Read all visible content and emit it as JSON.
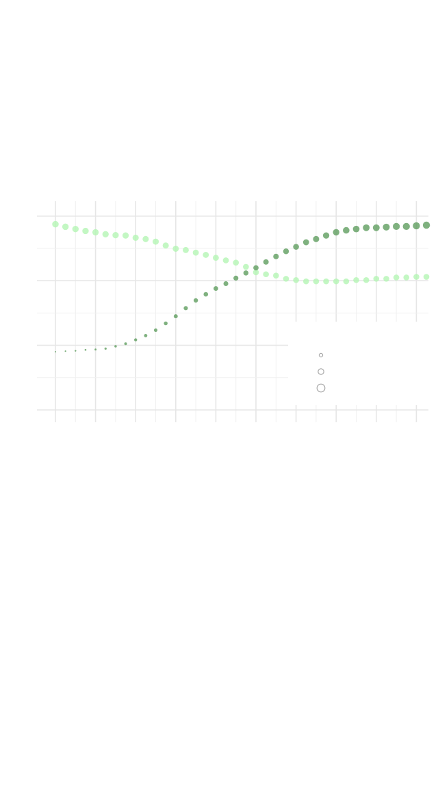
{
  "chart_data": {
    "type": "scatter",
    "title": "",
    "xlabel": "",
    "ylabel": "",
    "xlim": [
      0,
      37.4
    ],
    "ylim": [
      0,
      6
    ],
    "grid": true,
    "legend_position": "right",
    "legend": {
      "size_keys": [
        1,
        2,
        3
      ]
    },
    "series": [
      {
        "name": "",
        "color": "#b4f5b4",
        "x": [
          0,
          1,
          2,
          3,
          4,
          5,
          6,
          7,
          8,
          9,
          10,
          11,
          12,
          13,
          14,
          15,
          16,
          17,
          18,
          19,
          20,
          21,
          22,
          23,
          24,
          25,
          26,
          27,
          28,
          29,
          30,
          31,
          32,
          33,
          34,
          35,
          36,
          37
        ],
        "y": [
          5.75,
          5.67,
          5.6,
          5.54,
          5.5,
          5.44,
          5.41,
          5.4,
          5.33,
          5.29,
          5.21,
          5.09,
          4.99,
          4.95,
          4.87,
          4.8,
          4.71,
          4.63,
          4.56,
          4.43,
          4.26,
          4.2,
          4.16,
          4.06,
          4.02,
          3.98,
          3.98,
          3.98,
          3.98,
          3.98,
          4.02,
          4.02,
          4.06,
          4.06,
          4.1,
          4.1,
          4.12,
          4.12
        ],
        "size": [
          2.7,
          2.69,
          2.68,
          2.67,
          2.66,
          2.65,
          2.64,
          2.63,
          2.62,
          2.61,
          2.6,
          2.59,
          2.58,
          2.57,
          2.56,
          2.55,
          2.54,
          2.53,
          2.52,
          2.51,
          2.5,
          2.5,
          2.5,
          2.5,
          2.5,
          2.5,
          2.5,
          2.5,
          2.5,
          2.5,
          2.5,
          2.5,
          2.5,
          2.5,
          2.5,
          2.5,
          2.5,
          2.5
        ]
      },
      {
        "name": "",
        "color": "#5f9e5f",
        "x": [
          0,
          1,
          2,
          3,
          4,
          5,
          6,
          7,
          8,
          9,
          10,
          11,
          12,
          13,
          14,
          15,
          16,
          17,
          18,
          19,
          20,
          21,
          22,
          23,
          24,
          25,
          26,
          27,
          28,
          29,
          30,
          31,
          32,
          33,
          34,
          35,
          36,
          37
        ],
        "y": [
          1.8,
          1.82,
          1.83,
          1.86,
          1.87,
          1.9,
          1.97,
          2.05,
          2.17,
          2.3,
          2.47,
          2.68,
          2.9,
          3.15,
          3.39,
          3.58,
          3.76,
          3.91,
          4.08,
          4.24,
          4.4,
          4.58,
          4.75,
          4.91,
          5.05,
          5.19,
          5.29,
          5.4,
          5.5,
          5.56,
          5.6,
          5.64,
          5.64,
          5.66,
          5.68,
          5.68,
          5.7,
          5.72
        ],
        "size": [
          1.0,
          1.05,
          1.1,
          1.15,
          1.2,
          1.28,
          1.35,
          1.45,
          1.55,
          1.65,
          1.72,
          1.8,
          1.88,
          1.95,
          2.0,
          2.05,
          2.1,
          2.15,
          2.2,
          2.25,
          2.3,
          2.35,
          2.4,
          2.45,
          2.5,
          2.55,
          2.6,
          2.65,
          2.7,
          2.72,
          2.75,
          2.78,
          2.8,
          2.83,
          2.86,
          2.88,
          2.9,
          2.92
        ]
      }
    ]
  }
}
